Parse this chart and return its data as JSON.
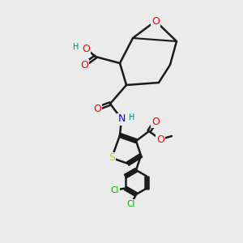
{
  "bg_color": "#ebebeb",
  "bond_color": "#1a1a1a",
  "bond_width": 1.8,
  "atom_colors": {
    "O": "#ff0000",
    "N": "#0000ff",
    "S": "#cccc00",
    "Cl": "#00aa00",
    "H": "#008080",
    "C": "#1a1a1a"
  },
  "font_size_atom": 9,
  "font_size_small": 7
}
